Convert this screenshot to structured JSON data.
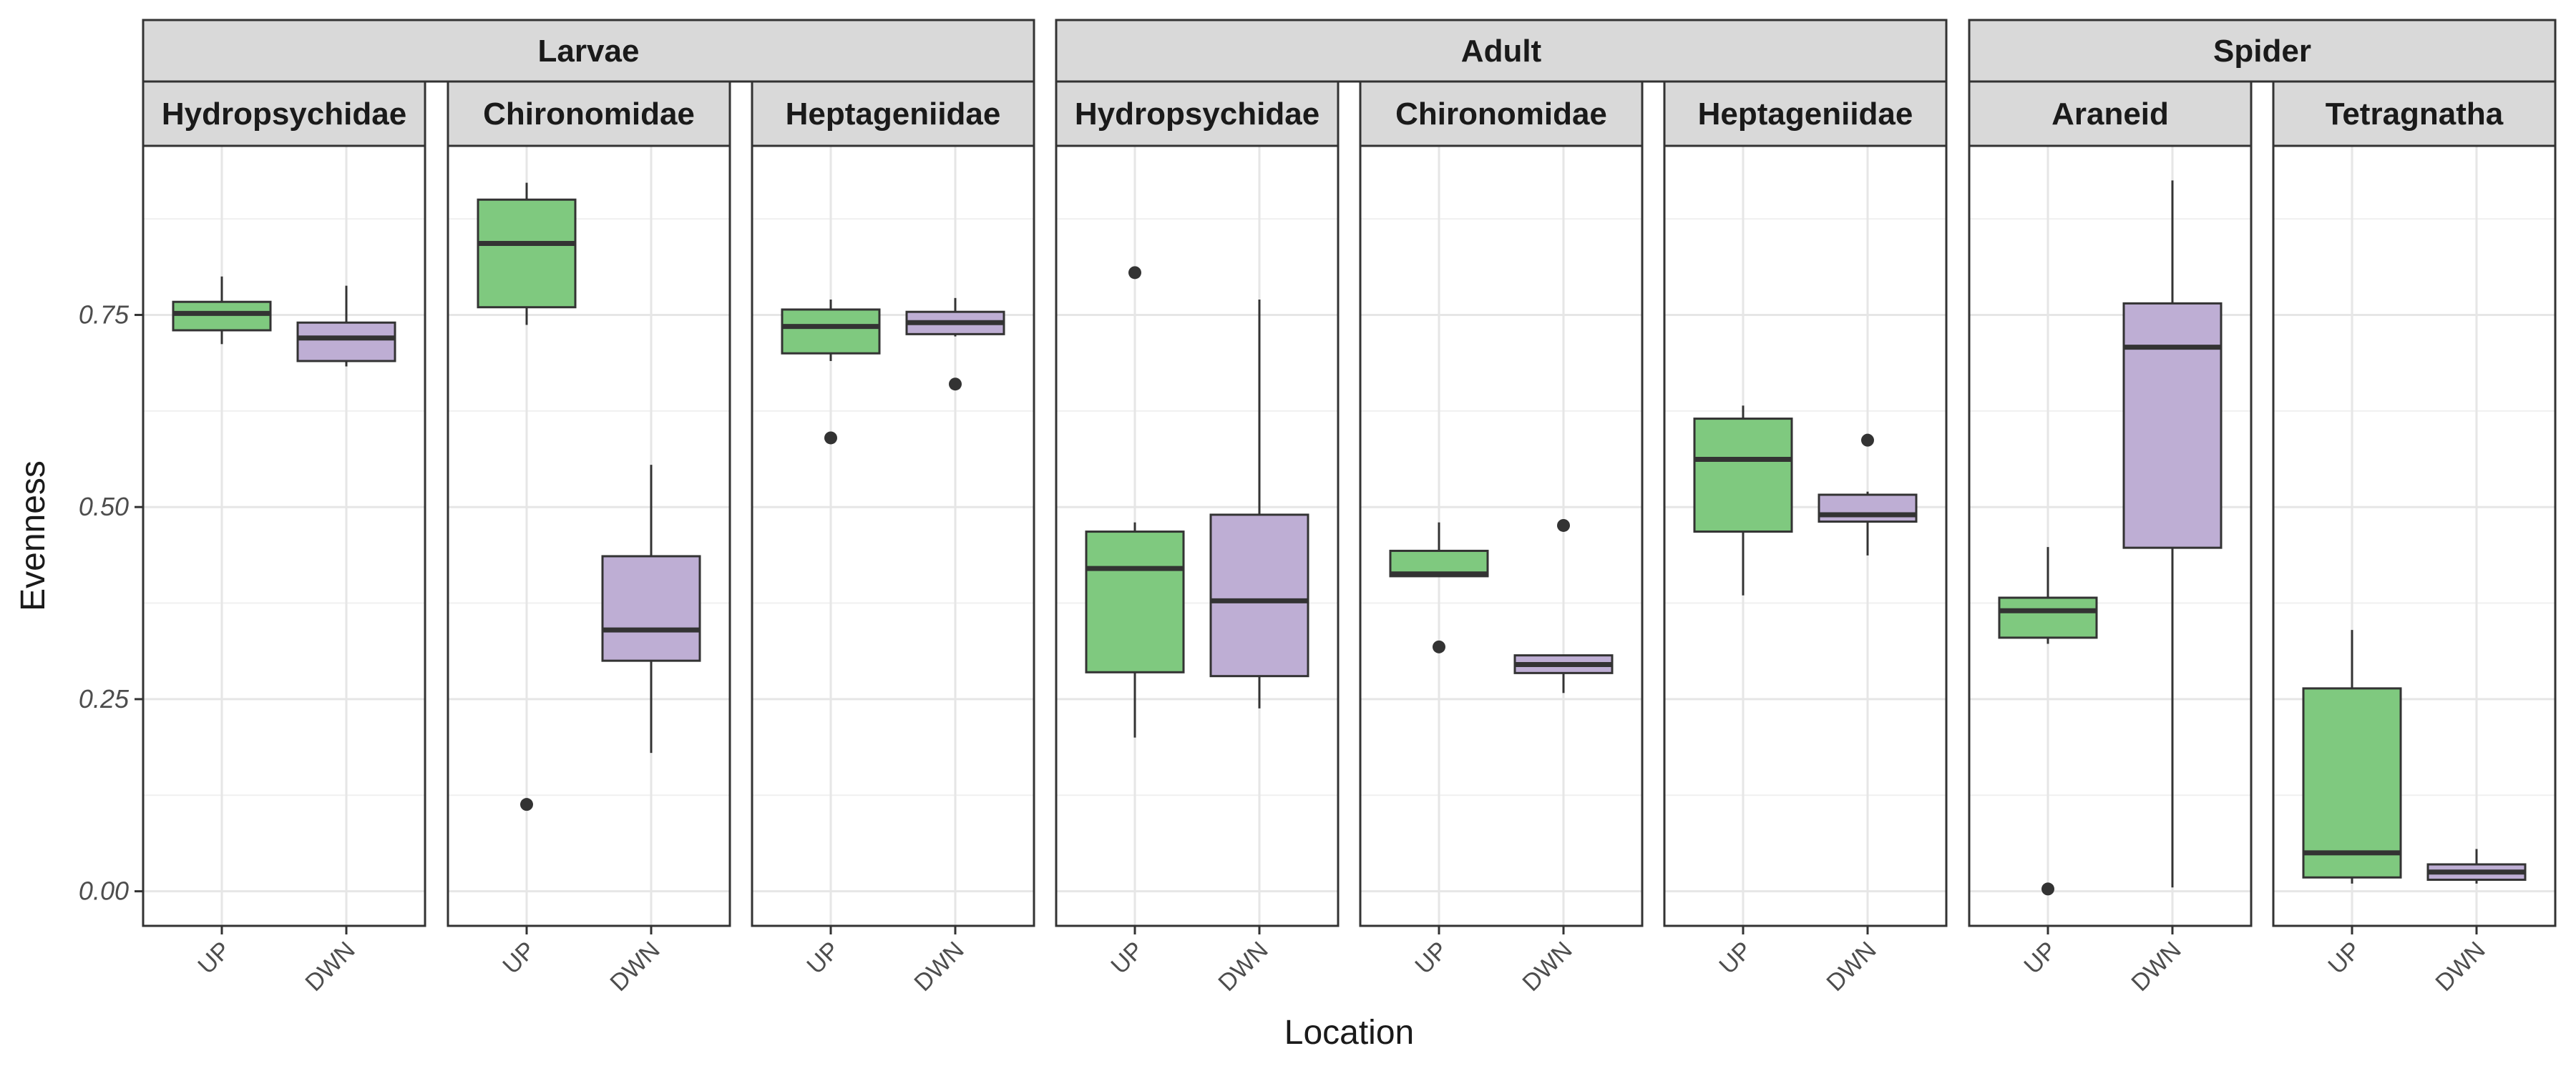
{
  "chart_data": {
    "type": "box",
    "xlabel": "Location",
    "ylabel": "Evenness",
    "ylim": [
      -0.045,
      0.97
    ],
    "yticks": [
      0.0,
      0.25,
      0.5,
      0.75
    ],
    "ytick_labels": [
      "0.00",
      "0.25",
      "0.50",
      "0.75"
    ],
    "categories": [
      "UP",
      "DWN"
    ],
    "colors": {
      "UP": "#7fc97f",
      "DWN": "#beaed4"
    },
    "grid": true,
    "legend": "none",
    "groups": [
      {
        "label": "Larvae",
        "panels": [
          {
            "label": "Hydropsychidae",
            "boxes": [
              {
                "category": "UP",
                "lower": 0.712,
                "q1": 0.73,
                "median": 0.752,
                "q3": 0.767,
                "upper": 0.8,
                "outliers": []
              },
              {
                "category": "DWN",
                "lower": 0.683,
                "q1": 0.69,
                "median": 0.72,
                "q3": 0.74,
                "upper": 0.788,
                "outliers": []
              }
            ]
          },
          {
            "label": "Chironomidae",
            "boxes": [
              {
                "category": "UP",
                "lower": 0.737,
                "q1": 0.76,
                "median": 0.843,
                "q3": 0.9,
                "upper": 0.922,
                "outliers": [
                  0.113
                ]
              },
              {
                "category": "DWN",
                "lower": 0.18,
                "q1": 0.3,
                "median": 0.34,
                "q3": 0.436,
                "upper": 0.555,
                "outliers": []
              }
            ]
          },
          {
            "label": "Heptageniidae",
            "boxes": [
              {
                "category": "UP",
                "lower": 0.69,
                "q1": 0.7,
                "median": 0.735,
                "q3": 0.757,
                "upper": 0.77,
                "outliers": [
                  0.59
                ]
              },
              {
                "category": "DWN",
                "lower": 0.722,
                "q1": 0.725,
                "median": 0.74,
                "q3": 0.754,
                "upper": 0.772,
                "outliers": [
                  0.66
                ]
              }
            ]
          }
        ]
      },
      {
        "label": "Adult",
        "panels": [
          {
            "label": "Hydropsychidae",
            "boxes": [
              {
                "category": "UP",
                "lower": 0.2,
                "q1": 0.285,
                "median": 0.42,
                "q3": 0.468,
                "upper": 0.48,
                "outliers": [
                  0.805
                ]
              },
              {
                "category": "DWN",
                "lower": 0.238,
                "q1": 0.28,
                "median": 0.378,
                "q3": 0.49,
                "upper": 0.77,
                "outliers": []
              }
            ]
          },
          {
            "label": "Chironomidae",
            "boxes": [
              {
                "category": "UP",
                "lower": 0.41,
                "q1": 0.41,
                "median": 0.413,
                "q3": 0.443,
                "upper": 0.48,
                "outliers": [
                  0.318
                ]
              },
              {
                "category": "DWN",
                "lower": 0.258,
                "q1": 0.284,
                "median": 0.295,
                "q3": 0.307,
                "upper": 0.307,
                "outliers": [
                  0.476
                ]
              }
            ]
          },
          {
            "label": "Heptageniidae",
            "boxes": [
              {
                "category": "UP",
                "lower": 0.385,
                "q1": 0.468,
                "median": 0.562,
                "q3": 0.615,
                "upper": 0.632,
                "outliers": []
              },
              {
                "category": "DWN",
                "lower": 0.437,
                "q1": 0.481,
                "median": 0.49,
                "q3": 0.516,
                "upper": 0.52,
                "outliers": [
                  0.587
                ]
              }
            ]
          }
        ]
      },
      {
        "label": "Spider",
        "panels": [
          {
            "label": "Araneid",
            "boxes": [
              {
                "category": "UP",
                "lower": 0.322,
                "q1": 0.33,
                "median": 0.365,
                "q3": 0.382,
                "upper": 0.448,
                "outliers": [
                  0.003
                ]
              },
              {
                "category": "DWN",
                "lower": 0.005,
                "q1": 0.447,
                "median": 0.708,
                "q3": 0.765,
                "upper": 0.925,
                "outliers": []
              }
            ]
          },
          {
            "label": "Tetragnatha",
            "boxes": [
              {
                "category": "UP",
                "lower": 0.01,
                "q1": 0.018,
                "median": 0.05,
                "q3": 0.264,
                "upper": 0.34,
                "outliers": []
              },
              {
                "category": "DWN",
                "lower": 0.01,
                "q1": 0.015,
                "median": 0.025,
                "q3": 0.035,
                "upper": 0.055,
                "outliers": []
              }
            ]
          }
        ]
      }
    ]
  }
}
